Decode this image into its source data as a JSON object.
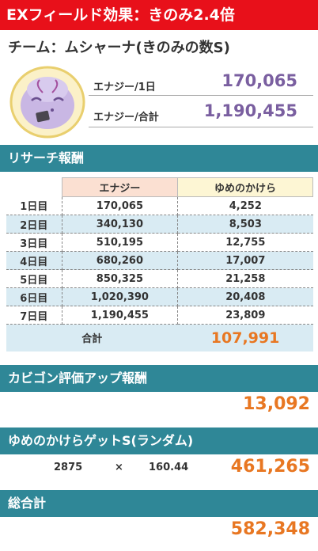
{
  "banner": {
    "text": "EXフィールド効果：きのみ2.4倍"
  },
  "team": {
    "title": "チーム：ムシャーナ(きのみの数S)"
  },
  "stats": {
    "energy_day_label": "エナジー/1日",
    "energy_day_value": "170,065",
    "energy_total_label": "エナジー/合計",
    "energy_total_value": "1,190,455"
  },
  "research": {
    "title": "リサーチ報酬",
    "columns": {
      "energy": "エナジー",
      "shards": "ゆめのかけら"
    },
    "rows": [
      {
        "day": "1日目",
        "energy": "170,065",
        "shards": "4,252"
      },
      {
        "day": "2日目",
        "energy": "340,130",
        "shards": "8,503"
      },
      {
        "day": "3日目",
        "energy": "510,195",
        "shards": "12,755"
      },
      {
        "day": "4日目",
        "energy": "680,260",
        "shards": "17,007"
      },
      {
        "day": "5日目",
        "energy": "850,325",
        "shards": "21,258"
      },
      {
        "day": "6日目",
        "energy": "1,020,390",
        "shards": "20,408"
      },
      {
        "day": "7日目",
        "energy": "1,190,455",
        "shards": "23,809"
      }
    ],
    "total_label": "合計",
    "total_value": "107,991"
  },
  "snorlax": {
    "title": "カビゴン評価アップ報酬",
    "value": "13,092"
  },
  "get_shards": {
    "title": "ゆめのかけらゲットS(ランダム)",
    "count": "2875",
    "times": "×",
    "multiplier": "160.44",
    "value": "461,265"
  },
  "grand_total": {
    "title": "総合計",
    "value": "582,348"
  },
  "colors": {
    "banner": "#e8101a",
    "section": "#2f8797",
    "accent_purple": "#7a5fa0",
    "accent_orange": "#e87722",
    "row_alt": "#d9ebf3"
  },
  "icons": {
    "avatar": "musharna-avatar-icon"
  }
}
